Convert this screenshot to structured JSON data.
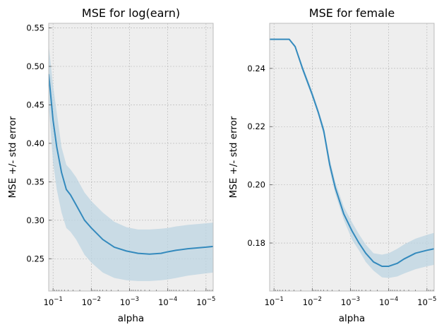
{
  "chart_data": [
    {
      "type": "line",
      "title": "MSE for log(earn)",
      "xlabel": "alpha",
      "ylabel": "MSE +/- std error",
      "xscale": "log",
      "x_inverted": true,
      "xlim": [
        0.13,
        6.5e-06
      ],
      "ylim": [
        0.208,
        0.556
      ],
      "xticks": [
        {
          "value": 0.1,
          "base": "10",
          "exp": "−1"
        },
        {
          "value": 0.01,
          "base": "10",
          "exp": "−2"
        },
        {
          "value": 0.001,
          "base": "10",
          "exp": "−3"
        },
        {
          "value": 0.0001,
          "base": "10",
          "exp": "−4"
        },
        {
          "value": 1e-05,
          "base": "10",
          "exp": "−5"
        }
      ],
      "yticks": [
        "0.25",
        "0.30",
        "0.35",
        "0.40",
        "0.45",
        "0.50",
        "0.55"
      ],
      "grid": true,
      "line_color": "#348abd",
      "band_color": "#bcd4e2",
      "series": [
        {
          "x": [
            0.13,
            0.1,
            0.08,
            0.06,
            0.045,
            0.035,
            0.025,
            0.015,
            0.01,
            0.005,
            0.0025,
            0.0012,
            0.0006,
            0.0003,
            0.00015,
            0.0001,
            6e-05,
            3e-05,
            1e-05,
            6.5e-06
          ],
          "y": [
            0.49,
            0.43,
            0.395,
            0.362,
            0.34,
            0.333,
            0.32,
            0.3,
            0.29,
            0.275,
            0.265,
            0.26,
            0.257,
            0.256,
            0.257,
            0.259,
            0.261,
            0.263,
            0.265,
            0.266
          ],
          "lower": [
            0.45,
            0.375,
            0.34,
            0.31,
            0.29,
            0.285,
            0.275,
            0.255,
            0.245,
            0.232,
            0.225,
            0.222,
            0.221,
            0.221,
            0.222,
            0.223,
            0.225,
            0.228,
            0.231,
            0.232
          ],
          "upper": [
            0.528,
            0.475,
            0.44,
            0.395,
            0.372,
            0.366,
            0.356,
            0.336,
            0.325,
            0.31,
            0.298,
            0.291,
            0.288,
            0.288,
            0.289,
            0.29,
            0.292,
            0.294,
            0.296,
            0.297
          ]
        }
      ]
    },
    {
      "type": "line",
      "title": "MSE for female",
      "xlabel": "alpha",
      "ylabel": "MSE +/- std error",
      "xscale": "log",
      "x_inverted": true,
      "xlim": [
        0.13,
        6.5e-06
      ],
      "ylim": [
        0.1635,
        0.2555
      ],
      "xticks": [
        {
          "value": 0.1,
          "base": "10",
          "exp": "−1"
        },
        {
          "value": 0.01,
          "base": "10",
          "exp": "−2"
        },
        {
          "value": 0.001,
          "base": "10",
          "exp": "−3"
        },
        {
          "value": 0.0001,
          "base": "10",
          "exp": "−4"
        },
        {
          "value": 1e-05,
          "base": "10",
          "exp": "−5"
        }
      ],
      "yticks": [
        "0.18",
        "0.20",
        "0.22",
        "0.24"
      ],
      "grid": true,
      "line_color": "#348abd",
      "band_color": "#bcd4e2",
      "series": [
        {
          "x": [
            0.13,
            0.07,
            0.04,
            0.028,
            0.018,
            0.01,
            0.007,
            0.005,
            0.0035,
            0.0025,
            0.0015,
            0.0009,
            0.0006,
            0.0004,
            0.00025,
            0.00015,
            0.0001,
            6e-05,
            4e-05,
            2e-05,
            1e-05,
            6.5e-06
          ],
          "y": [
            0.25,
            0.25,
            0.25,
            0.2475,
            0.24,
            0.231,
            0.225,
            0.2185,
            0.207,
            0.199,
            0.19,
            0.184,
            0.18,
            0.1765,
            0.1735,
            0.172,
            0.172,
            0.173,
            0.1745,
            0.1765,
            0.1775,
            0.178
          ],
          "lower": [
            0.25,
            0.25,
            0.25,
            0.247,
            0.239,
            0.23,
            0.224,
            0.217,
            0.205,
            0.197,
            0.188,
            0.181,
            0.1775,
            0.1735,
            0.1705,
            0.1682,
            0.168,
            0.1685,
            0.1695,
            0.171,
            0.172,
            0.1725
          ],
          "upper": [
            0.2502,
            0.2502,
            0.2502,
            0.248,
            0.241,
            0.2322,
            0.2262,
            0.22,
            0.209,
            0.201,
            0.1925,
            0.187,
            0.183,
            0.1795,
            0.1765,
            0.176,
            0.1765,
            0.178,
            0.1795,
            0.1815,
            0.1828,
            0.1835
          ]
        }
      ]
    }
  ]
}
